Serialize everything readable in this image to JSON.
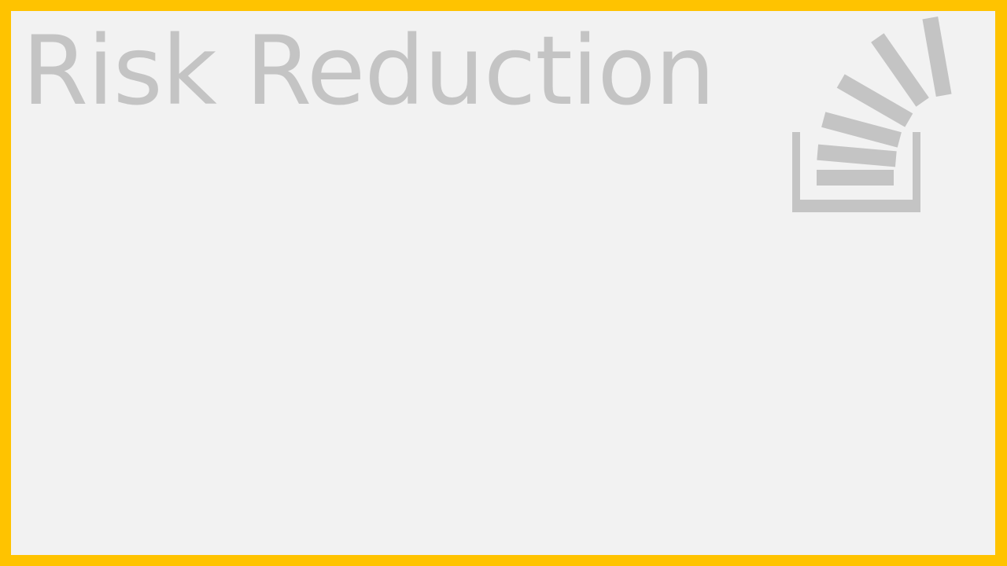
{
  "slide": {
    "title": "Risk Reduction",
    "logo_icon": "stack-overflow-logo-icon"
  },
  "colors": {
    "frame": "#FFC300",
    "background": "#F2F2F2",
    "title_text": "#C4C4C4",
    "logo": "#C4C4C4"
  }
}
